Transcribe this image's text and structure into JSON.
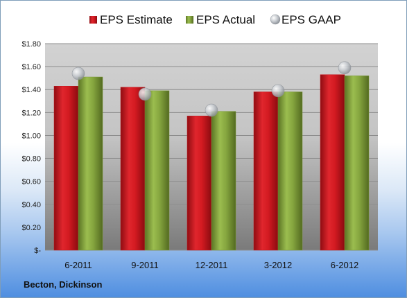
{
  "company": "Becton, Dickinson",
  "colors": {
    "estimate": "#c6161d",
    "actual": "#7c9b38",
    "gaap": "#b8bcc2"
  },
  "chart_data": {
    "type": "bar",
    "categories": [
      "6-2011",
      "9-2011",
      "12-2011",
      "3-2012",
      "6-2012"
    ],
    "series": [
      {
        "name": "EPS Estimate",
        "type": "bar",
        "values": [
          1.43,
          1.42,
          1.17,
          1.38,
          1.53
        ]
      },
      {
        "name": "EPS Actual",
        "type": "bar",
        "values": [
          1.51,
          1.39,
          1.21,
          1.38,
          1.52
        ]
      },
      {
        "name": "EPS GAAP",
        "type": "scatter",
        "values": [
          1.54,
          1.36,
          1.22,
          1.39,
          1.59
        ]
      }
    ],
    "yticks": [
      "$-",
      "$0.20",
      "$0.40",
      "$0.60",
      "$0.80",
      "$1.00",
      "$1.20",
      "$1.40",
      "$1.60",
      "$1.80"
    ],
    "ylim": [
      0,
      1.8
    ],
    "grid": true,
    "legend": "top"
  }
}
